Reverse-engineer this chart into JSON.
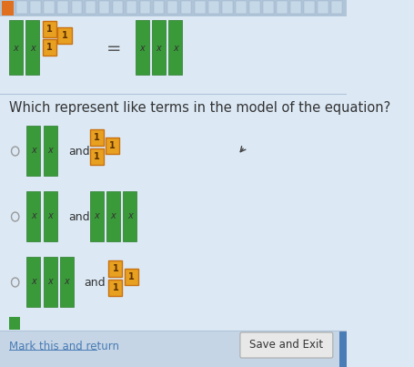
{
  "bg_color": "#dce9f5",
  "toolbar_color": "#c8d8e8",
  "title_text": "Which represent like terms in the model of the equation?",
  "title_fontsize": 10.5,
  "green_color": "#3a9a3a",
  "orange_color": "#e8a020",
  "orange_border": "#c87010",
  "text_color_dark": "#333333",
  "radio_color": "#888888",
  "and_fontsize": 9,
  "save_btn_text": "Save and Exit",
  "mark_text": "Mark this and return",
  "mark_color": "#4a7cb5"
}
